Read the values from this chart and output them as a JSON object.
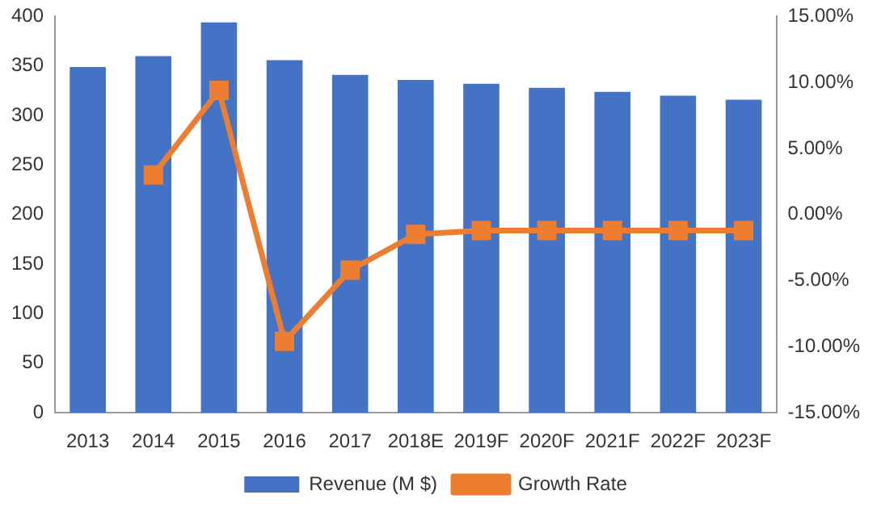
{
  "chart_data": {
    "type": "bar",
    "categories": [
      "2013",
      "2014",
      "2015",
      "2016",
      "2017",
      "2018E",
      "2019F",
      "2020F",
      "2021F",
      "2022F",
      "2023F"
    ],
    "series": [
      {
        "name": "Revenue (M $)",
        "color": "#4472c4",
        "values": [
          349,
          360,
          394,
          356,
          341,
          336,
          332,
          328,
          324,
          320,
          316
        ]
      },
      {
        "name": "Growth Rate",
        "type": "line",
        "axis": "y2",
        "color": "#ed7d31",
        "marker": "square",
        "values": [
          null,
          3.0,
          9.4,
          -9.6,
          -4.2,
          -1.5,
          -1.2,
          -1.2,
          -1.2,
          -1.2,
          -1.2
        ]
      }
    ],
    "ylim": [
      0,
      400
    ],
    "yticks": [
      0,
      50,
      100,
      150,
      200,
      250,
      300,
      350,
      400
    ],
    "y2lim": [
      -15,
      15
    ],
    "y2ticks": [
      {
        "value": -15,
        "label": "-15.00%"
      },
      {
        "value": -10,
        "label": "-10.00%"
      },
      {
        "value": -5,
        "label": "-5.00%"
      },
      {
        "value": 0,
        "label": "0.00%"
      },
      {
        "value": 5,
        "label": "5.00%"
      },
      {
        "value": 10,
        "label": "10.00%"
      },
      {
        "value": 15,
        "label": "15.00%"
      }
    ],
    "grid": false,
    "legend": "bottom"
  }
}
